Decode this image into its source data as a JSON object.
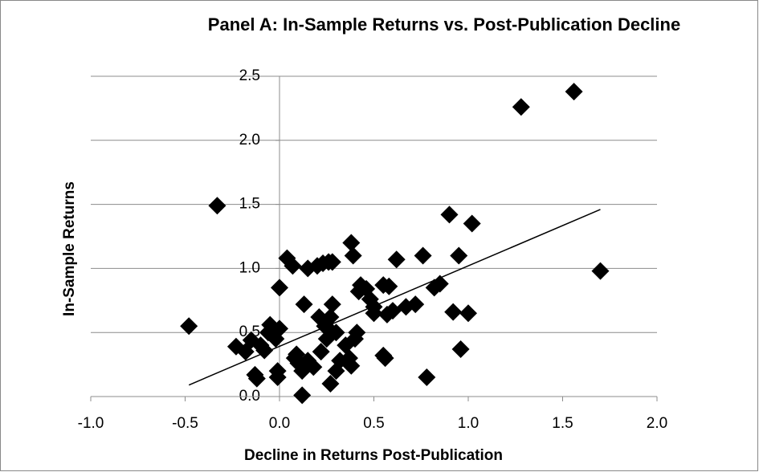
{
  "chart_data": {
    "type": "scatter",
    "title": "Panel A: In-Sample Returns vs. Post-Publication Decline",
    "x_label": "Decline in Returns Post-Publication",
    "y_label": "In-Sample Returns",
    "color": "#000000",
    "grid": true,
    "xlim": [
      -1,
      2
    ],
    "ylim": [
      0,
      2.5
    ],
    "xticks": [
      {
        "value": -1,
        "label": "-1.0"
      },
      {
        "value": -0.5,
        "label": "-0.5"
      },
      {
        "value": 0,
        "label": "0.0"
      },
      0.5,
      {
        "value": 1,
        "label": "1.0"
      },
      1.5,
      {
        "value": 2,
        "label": "2.0"
      }
    ],
    "yticks": [
      {
        "value": 0,
        "label": "0.0"
      },
      0.5,
      {
        "value": 1,
        "label": "1.0"
      },
      1.5,
      {
        "value": 2,
        "label": "2.0"
      },
      2.5
    ],
    "x": [
      -0.48,
      -0.33,
      -0.23,
      -0.18,
      -0.15,
      -0.13,
      -0.12,
      -0.1,
      -0.08,
      -0.06,
      -0.05,
      -0.02,
      0.0,
      -0.01,
      -0.01,
      0.0,
      0.04,
      0.07,
      0.08,
      0.09,
      0.1,
      0.12,
      0.12,
      0.13,
      0.15,
      0.15,
      0.18,
      0.2,
      0.21,
      0.22,
      0.23,
      0.24,
      0.25,
      0.26,
      0.27,
      0.28,
      0.27,
      0.28,
      0.28,
      0.3,
      0.3,
      0.32,
      0.35,
      0.37,
      0.38,
      0.38,
      0.39,
      0.4,
      0.41,
      0.42,
      0.43,
      0.46,
      0.48,
      0.5,
      0.5,
      0.55,
      0.55,
      0.56,
      0.57,
      0.58,
      0.6,
      0.62,
      0.67,
      0.72,
      0.76,
      0.78,
      0.82,
      0.85,
      0.9,
      0.92,
      0.95,
      0.96,
      1.0,
      1.02,
      1.28,
      1.56,
      1.7
    ],
    "y": [
      0.55,
      1.49,
      0.39,
      0.35,
      0.44,
      0.17,
      0.14,
      0.4,
      0.36,
      0.5,
      0.56,
      0.45,
      0.53,
      0.2,
      0.15,
      0.85,
      1.08,
      1.02,
      0.3,
      0.33,
      0.26,
      0.2,
      0.01,
      0.72,
      1.0,
      0.28,
      0.23,
      1.02,
      0.62,
      0.35,
      1.04,
      0.55,
      0.45,
      1.05,
      0.62,
      1.05,
      0.1,
      0.72,
      0.5,
      0.5,
      0.2,
      0.28,
      0.4,
      0.3,
      1.2,
      0.24,
      1.1,
      0.45,
      0.5,
      0.82,
      0.87,
      0.84,
      0.76,
      0.65,
      0.7,
      0.87,
      0.32,
      0.3,
      0.64,
      0.86,
      0.67,
      1.07,
      0.7,
      0.72,
      1.1,
      0.15,
      0.85,
      0.88,
      1.42,
      0.66,
      1.1,
      0.37,
      0.65,
      1.35,
      2.26,
      2.38,
      0.98
    ],
    "trendline": {
      "x": [
        -0.48,
        1.7
      ],
      "y": [
        0.09,
        1.46
      ]
    }
  }
}
